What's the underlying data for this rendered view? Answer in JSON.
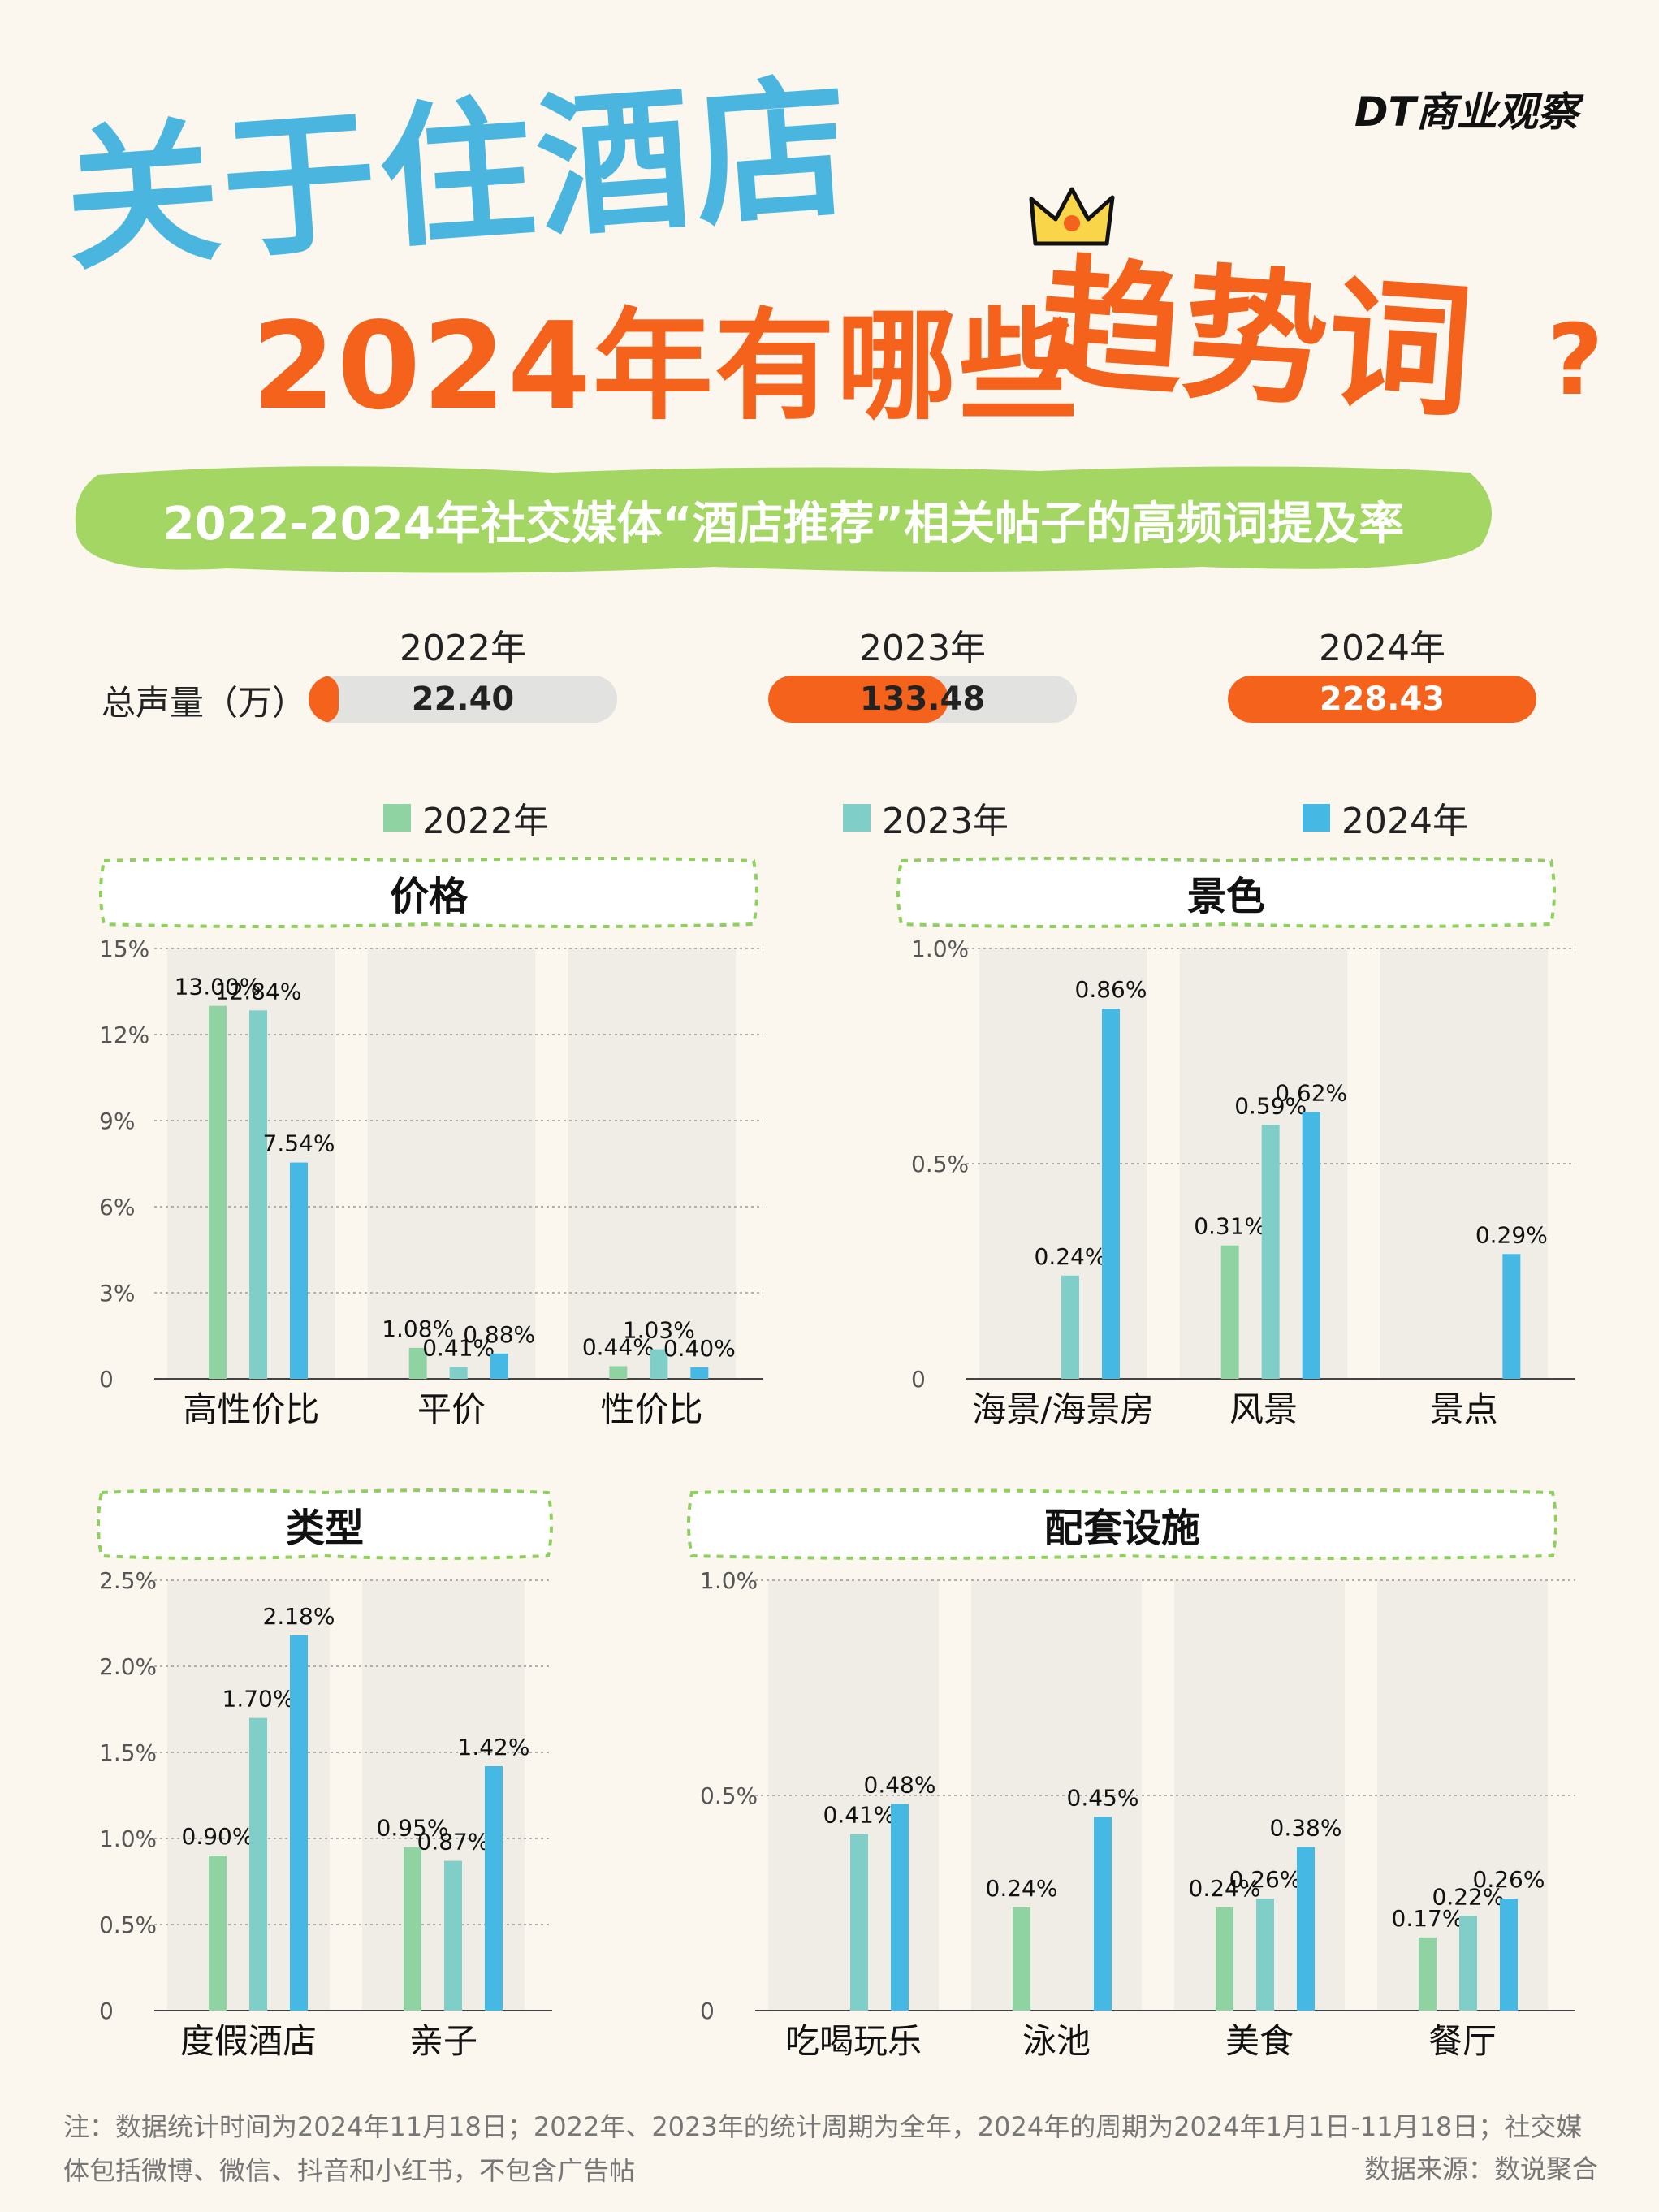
{
  "header": {
    "title_line1": "关于住酒店",
    "title_line2": "2024年有哪些",
    "title_highlight": "趋势词",
    "title_qmark": "?",
    "brand": "DT商业观察",
    "subtitle": "2022-2024年社交媒体“酒店推荐”相关帖子的高频词提及率"
  },
  "volume": {
    "label": "总声量（万）",
    "items": [
      {
        "year": "2022年",
        "value": "22.40",
        "fill": 0.098
      },
      {
        "year": "2023年",
        "value": "133.48",
        "fill": 0.584
      },
      {
        "year": "2024年",
        "value": "228.43",
        "fill": 1.0
      }
    ]
  },
  "legend": [
    {
      "label": "2022年",
      "color": "#8fd3a3"
    },
    {
      "label": "2023年",
      "color": "#7fcfc8"
    },
    {
      "label": "2024年",
      "color": "#45b8e4"
    }
  ],
  "chart_data": [
    {
      "type": "bar",
      "title": "价格",
      "categories": [
        "高性价比",
        "平价",
        "性价比"
      ],
      "yticks": [
        "15%",
        "12%",
        "9%",
        "6%",
        "3%",
        "0"
      ],
      "ylim": [
        0,
        15
      ],
      "series": [
        {
          "name": "2022年",
          "values": [
            13.0,
            1.08,
            0.44
          ],
          "labels": [
            "13.00%",
            "1.08%",
            "0.44%"
          ]
        },
        {
          "name": "2023年",
          "values": [
            12.84,
            0.41,
            1.03
          ],
          "labels": [
            "12.84%",
            "0.41%",
            "1.03%"
          ]
        },
        {
          "name": "2024年",
          "values": [
            7.54,
            0.88,
            0.4
          ],
          "labels": [
            "7.54%",
            "0.88%",
            "0.40%"
          ]
        }
      ]
    },
    {
      "type": "bar",
      "title": "景色",
      "categories": [
        "海景/海景房",
        "风景",
        "景点"
      ],
      "yticks": [
        "1.0%",
        "0.5%",
        "0"
      ],
      "ylim": [
        0,
        1.0
      ],
      "series": [
        {
          "name": "2022年",
          "values": [
            null,
            0.31,
            null
          ],
          "labels": [
            "",
            "0.31%",
            ""
          ]
        },
        {
          "name": "2023年",
          "values": [
            0.24,
            0.59,
            null
          ],
          "labels": [
            "0.24%",
            "0.59%",
            ""
          ]
        },
        {
          "name": "2024年",
          "values": [
            0.86,
            0.62,
            0.29
          ],
          "labels": [
            "0.86%",
            "0.62%",
            "0.29%"
          ]
        }
      ]
    },
    {
      "type": "bar",
      "title": "类型",
      "categories": [
        "度假酒店",
        "亲子"
      ],
      "yticks": [
        "2.5%",
        "2.0%",
        "1.5%",
        "1.0%",
        "0.5%",
        "0"
      ],
      "ylim": [
        0,
        2.5
      ],
      "series": [
        {
          "name": "2022年",
          "values": [
            0.9,
            0.95
          ],
          "labels": [
            "0.90%",
            "0.95%"
          ]
        },
        {
          "name": "2023年",
          "values": [
            1.7,
            0.87
          ],
          "labels": [
            "1.70%",
            "0.87%"
          ]
        },
        {
          "name": "2024年",
          "values": [
            2.18,
            1.42
          ],
          "labels": [
            "2.18%",
            "1.42%"
          ]
        }
      ]
    },
    {
      "type": "bar",
      "title": "配套设施",
      "categories": [
        "吃喝玩乐",
        "泳池",
        "美食",
        "餐厅"
      ],
      "yticks": [
        "1.0%",
        "0.5%",
        "0"
      ],
      "ylim": [
        0,
        1.0
      ],
      "series": [
        {
          "name": "2022年",
          "values": [
            null,
            0.24,
            0.24,
            0.17
          ],
          "labels": [
            "",
            "0.24%",
            "0.24%",
            "0.17%"
          ]
        },
        {
          "name": "2023年",
          "values": [
            0.41,
            null,
            0.26,
            0.22
          ],
          "labels": [
            "0.41%",
            "",
            "0.26%",
            "0.22%"
          ]
        },
        {
          "name": "2024年",
          "values": [
            0.48,
            0.45,
            0.38,
            0.26
          ],
          "labels": [
            "0.48%",
            "0.45%",
            "0.38%",
            "0.26%"
          ]
        }
      ]
    }
  ],
  "footer": {
    "note": "注：数据统计时间为2024年11月18日；2022年、2023年的统计周期为全年，2024年的周期为2024年1月1日-11月18日；社交媒体包括微博、微信、抖音和小红书，不包含广告帖",
    "source": "数据来源：数说聚合"
  },
  "colors": {
    "blue": "#45b8e4",
    "orange": "#f4621c",
    "green_band": "#a3d662"
  }
}
